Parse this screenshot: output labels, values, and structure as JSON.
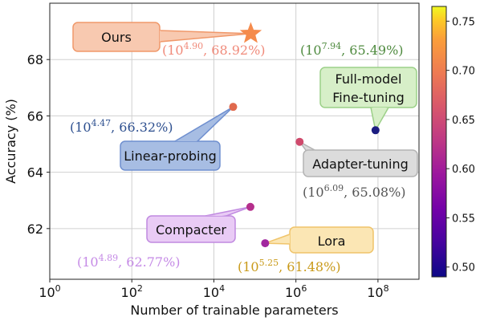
{
  "chart_data": {
    "type": "scatter",
    "xlabel": "Number of trainable parameters",
    "ylabel": "Accuracy (%)",
    "xscale": "log10",
    "xlim_exponent": [
      0,
      9
    ],
    "ylim": [
      60.2,
      70.0
    ],
    "x_ticks": [
      {
        "base": "10",
        "exp": "0"
      },
      {
        "base": "10",
        "exp": "2"
      },
      {
        "base": "10",
        "exp": "4"
      },
      {
        "base": "10",
        "exp": "6"
      },
      {
        "base": "10",
        "exp": "8"
      }
    ],
    "x_tick_exponents": [
      0,
      2,
      4,
      6,
      8
    ],
    "y_ticks": [
      "62",
      "64",
      "66",
      "68"
    ],
    "y_tick_values": [
      62,
      64,
      66,
      68
    ],
    "grid": true,
    "colorbar": {
      "colormap": "plasma",
      "range": [
        0.49,
        0.765
      ],
      "ticks": [
        "0.50",
        "0.55",
        "0.60",
        "0.65",
        "0.70",
        "0.75"
      ],
      "tick_values": [
        0.5,
        0.55,
        0.6,
        0.65,
        0.7,
        0.75
      ]
    },
    "points": [
      {
        "name": "Ours",
        "log10_params": 4.9,
        "accuracy": 68.92,
        "marker": "star",
        "color": "#f58b4c",
        "coord_base": "10",
        "coord_exp": "4.90",
        "coord_acc": "68.92%",
        "coord_color": "#f08a7a",
        "callout_fill": "#f8c9b0",
        "callout_stroke": "#f0986a"
      },
      {
        "name": "Linear-probing",
        "log10_params": 4.47,
        "accuracy": 66.32,
        "marker": "circle",
        "color": "#e06a4e",
        "coord_base": "10",
        "coord_exp": "4.47",
        "coord_acc": "66.32%",
        "coord_color": "#2d4f8f",
        "callout_fill": "#a7bde3",
        "callout_stroke": "#6f8fcf"
      },
      {
        "name": "Full-model\nFine-tuning",
        "log10_params": 7.94,
        "accuracy": 65.49,
        "marker": "circle",
        "color": "#1b1c80",
        "coord_base": "10",
        "coord_exp": "7.94",
        "coord_acc": "65.49%",
        "coord_color": "#4e8a3e",
        "callout_fill": "#d7efc8",
        "callout_stroke": "#9cd088"
      },
      {
        "name": "Adapter-tuning",
        "log10_params": 6.09,
        "accuracy": 65.08,
        "marker": "circle",
        "color": "#cf4a6c",
        "coord_base": "10",
        "coord_exp": "6.09",
        "coord_acc": "65.08%",
        "coord_color": "#555555",
        "callout_fill": "#dcdcdc",
        "callout_stroke": "#b4b4b4"
      },
      {
        "name": "Compacter",
        "log10_params": 4.89,
        "accuracy": 62.77,
        "marker": "circle",
        "color": "#b52f8c",
        "coord_base": "10",
        "coord_exp": "4.89",
        "coord_acc": "62.77%",
        "coord_color": "#c58ae6",
        "callout_fill": "#e9cbf5",
        "callout_stroke": "#c08ae0"
      },
      {
        "name": "Lora",
        "log10_params": 5.25,
        "accuracy": 61.48,
        "marker": "circle",
        "color": "#a2279f",
        "coord_base": "10",
        "coord_exp": "5.25",
        "coord_acc": "61.48%",
        "coord_color": "#c99a1a",
        "callout_fill": "#fbe6b4",
        "callout_stroke": "#f0c46a"
      }
    ]
  }
}
